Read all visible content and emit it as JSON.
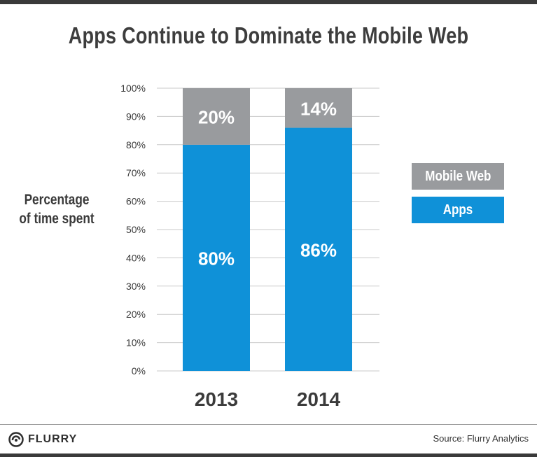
{
  "title": "Apps Continue to Dominate the Mobile Web",
  "y_axis_label_lines": [
    "Percentage",
    "of time spent"
  ],
  "legend": [
    {
      "label": "Mobile Web",
      "color": "#999b9e"
    },
    {
      "label": "Apps",
      "color": "#0f91d8"
    }
  ],
  "footer": {
    "logo_text": "FLURRY",
    "logo_icon": "flurry-swirl-icon",
    "source": "Source: Flurry Analytics"
  },
  "chart_data": {
    "type": "bar",
    "stacked": true,
    "categories": [
      "2013",
      "2014"
    ],
    "series": [
      {
        "name": "Apps",
        "values": [
          80,
          86
        ],
        "labels": [
          "80%",
          "86%"
        ],
        "color": "#0f91d8"
      },
      {
        "name": "Mobile Web",
        "values": [
          20,
          14
        ],
        "labels": [
          "20%",
          "14%"
        ],
        "color": "#999b9e"
      }
    ],
    "ylabel": "Percentage of time spent",
    "ylim": [
      0,
      100
    ],
    "yticks": [
      0,
      10,
      20,
      30,
      40,
      50,
      60,
      70,
      80,
      90,
      100
    ],
    "ytick_labels": [
      "0%",
      "10%",
      "20%",
      "30%",
      "40%",
      "50%",
      "60%",
      "70%",
      "80%",
      "90%",
      "100%"
    ],
    "grid": true,
    "legend_position": "right"
  }
}
